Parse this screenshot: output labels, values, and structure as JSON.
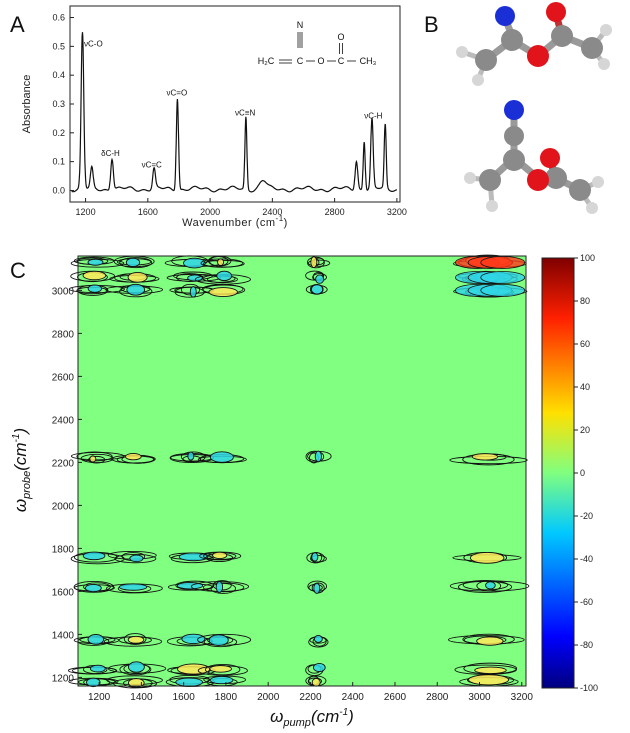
{
  "panels": {
    "a": "A",
    "b": "B",
    "c": "C"
  },
  "chart_data": [
    {
      "type": "line",
      "panel": "A",
      "xlabel": "Wavenumber (cm",
      "xlabel_sup": "-1",
      "xlabel_close": ")",
      "ylabel": "Absorbance",
      "xlim": [
        1100,
        3220
      ],
      "ylim": [
        -0.04,
        0.64
      ],
      "xticks": [
        1200,
        1600,
        2000,
        2400,
        2800,
        3200
      ],
      "yticks": [
        0.0,
        0.1,
        0.2,
        0.3,
        0.4,
        0.5,
        0.6
      ],
      "ytick_labels": [
        "0.0",
        "0.1",
        "0.2",
        "0.3",
        "0.4",
        "0.5",
        "0.6"
      ],
      "baseline": 0.005,
      "peaks": [
        {
          "x": 1180,
          "y": 0.54,
          "w": 12
        },
        {
          "x": 1240,
          "y": 0.07,
          "w": 12
        },
        {
          "x": 1370,
          "y": 0.11,
          "w": 12
        },
        {
          "x": 1640,
          "y": 0.07,
          "w": 12
        },
        {
          "x": 1790,
          "y": 0.32,
          "w": 10
        },
        {
          "x": 2230,
          "y": 0.25,
          "w": 9
        },
        {
          "x": 2340,
          "y": 0.03,
          "w": 30
        },
        {
          "x": 2940,
          "y": 0.1,
          "w": 12
        },
        {
          "x": 2990,
          "y": 0.17,
          "w": 9
        },
        {
          "x": 3040,
          "y": 0.24,
          "w": 11
        },
        {
          "x": 3125,
          "y": 0.22,
          "w": 9
        }
      ],
      "annotations": [
        {
          "text": "νC-O",
          "x": 1190,
          "y": 0.5
        },
        {
          "text": "δC-H",
          "x": 1300,
          "y": 0.12
        },
        {
          "text": "νC=C",
          "x": 1560,
          "y": 0.08
        },
        {
          "text": "νC=O",
          "x": 1720,
          "y": 0.33
        },
        {
          "text": "νC≡N",
          "x": 2160,
          "y": 0.26
        },
        {
          "text": "νC-H",
          "x": 2990,
          "y": 0.25
        }
      ],
      "structure": {
        "n": "N",
        "o": "O",
        "left": "H₂C",
        "mid": "C",
        "ester_o": "O",
        "carbonyl_c": "C",
        "right": "CH₃"
      }
    },
    {
      "type": "heatmap",
      "panel": "C",
      "xlabel": "ω",
      "xlabel_sub": "pump",
      "xlabel_unit": "(cm",
      "xlabel_sup": "-1",
      "xlabel_close": ")",
      "ylabel": "ω",
      "ylabel_sub": "probe",
      "ylabel_unit": "(cm",
      "ylabel_sup": "-1",
      "ylabel_close": ")",
      "xlim": [
        1100,
        3220
      ],
      "ylim": [
        1160,
        3160
      ],
      "xticks": [
        1200,
        1400,
        1600,
        1800,
        2000,
        2200,
        2400,
        2600,
        2800,
        3000,
        3200
      ],
      "yticks": [
        1200,
        1400,
        1600,
        1800,
        2000,
        2200,
        2400,
        2600,
        2800,
        3000
      ],
      "pump_bands": [
        1180,
        1370,
        1640,
        1780,
        2230,
        3040
      ],
      "probe_bands": [
        1180,
        1240,
        1370,
        1620,
        1760,
        2220,
        3000,
        3060,
        3130
      ],
      "colorbar": {
        "min": -100,
        "max": 100,
        "ticks": [
          100,
          80,
          60,
          40,
          20,
          0,
          -20,
          -40,
          -60,
          -80,
          -100
        ]
      },
      "background_value": 0,
      "colors": {
        "positive": "#ffe95c",
        "negative": "#2fd6e6",
        "background": "#80ff80"
      }
    }
  ],
  "molecule": {
    "atom_colors": {
      "carbon": "#8a8a8a",
      "hydrogen": "#d8d8d8",
      "oxygen": "#e0141a",
      "nitrogen": "#1a2fd6"
    }
  }
}
